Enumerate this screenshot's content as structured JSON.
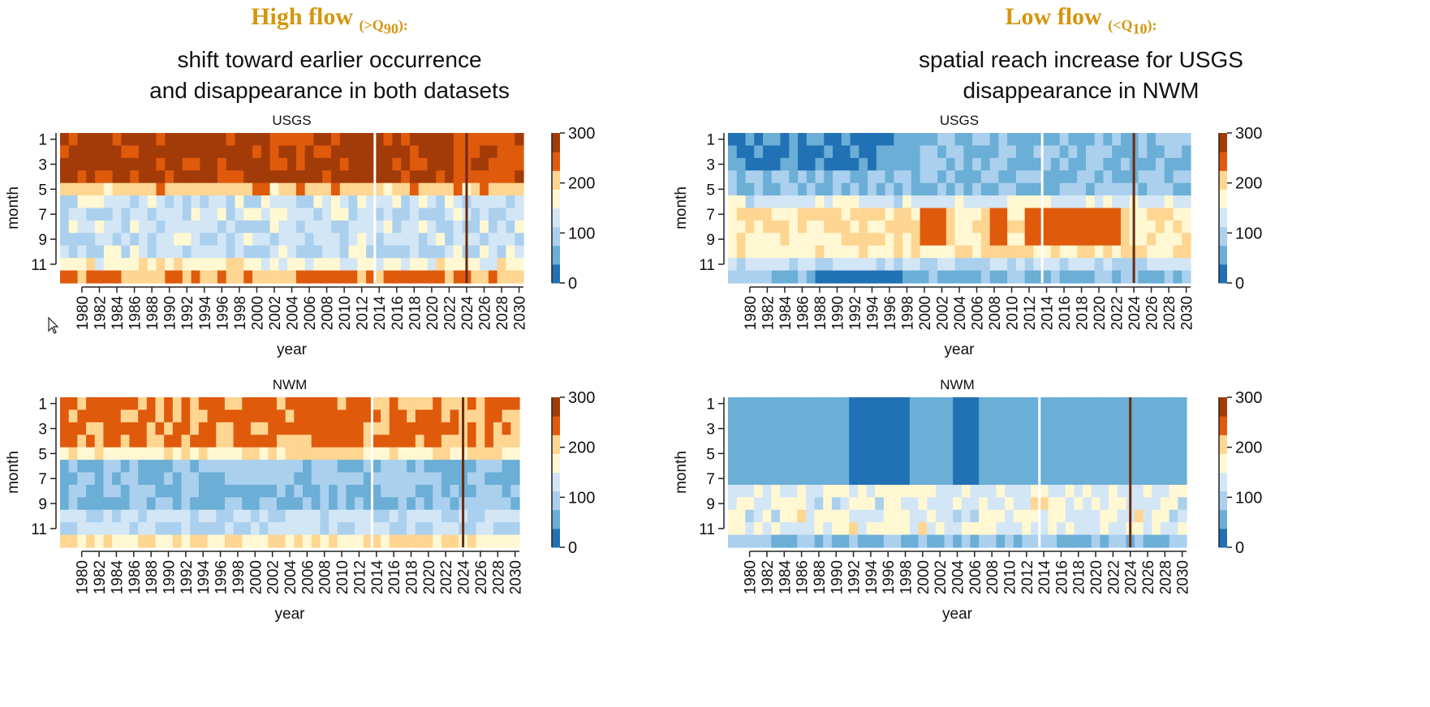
{
  "headers": [
    {
      "prefix": "High flow ",
      "paren_open": "(>Q",
      "subscript": "90",
      "paren_close": "):",
      "line1": "shift toward earlier occurrence",
      "line2": "and disappearance in both datasets",
      "color": "#d4960e"
    },
    {
      "prefix": "Low flow ",
      "paren_open": "(<Q",
      "subscript": "10",
      "paren_close": "):",
      "line1": "spatial reach increase for USGS",
      "line2": "disappearance in NWM",
      "color": "#d4960e"
    }
  ],
  "colorbar": {
    "ticks": [
      0,
      100,
      200,
      300
    ],
    "bins": [
      {
        "from": 0,
        "to": 37.5,
        "color": "#2171b5"
      },
      {
        "from": 37.5,
        "to": 75,
        "color": "#6baed6"
      },
      {
        "from": 75,
        "to": 112.5,
        "color": "#aad0ee"
      },
      {
        "from": 112.5,
        "to": 150,
        "color": "#d3e6f5"
      },
      {
        "from": 150,
        "to": 187.5,
        "color": "#fff8d2"
      },
      {
        "from": 187.5,
        "to": 225,
        "color": "#fed591"
      },
      {
        "from": 225,
        "to": 262.5,
        "color": "#e05a0c"
      },
      {
        "from": 262.5,
        "to": 300,
        "color": "#a33b08"
      }
    ]
  },
  "chart_data": [
    {
      "type": "heatmap",
      "title": "USGS",
      "xlabel": "year",
      "ylabel": "month",
      "flow": "high",
      "xticks": [
        "1980",
        "1982",
        "1984",
        "1986",
        "1988",
        "1990",
        "1992",
        "1994",
        "1996",
        "1998",
        "2000",
        "2002",
        "2004",
        "2006",
        "2008",
        "2010",
        "2012",
        "2014",
        "2016",
        "2018",
        "2020",
        "2022",
        "2024",
        "2026",
        "2028",
        "2030"
      ],
      "yticks": [
        "1",
        "3",
        "5",
        "7",
        "9",
        "11"
      ],
      "white_line_after_year": 2013,
      "brown_line_year": 2024,
      "ylim": [
        1,
        12
      ],
      "vlim": [
        0,
        300
      ]
    },
    {
      "type": "heatmap",
      "title": "USGS",
      "xlabel": "year",
      "ylabel": "month",
      "flow": "low",
      "xticks": [
        "1980",
        "1982",
        "1984",
        "1986",
        "1988",
        "1990",
        "1992",
        "1994",
        "1996",
        "1998",
        "2000",
        "2002",
        "2004",
        "2006",
        "2008",
        "2010",
        "2012",
        "2014",
        "2016",
        "2018",
        "2020",
        "2022",
        "2024",
        "2026",
        "2028",
        "2030"
      ],
      "yticks": [
        "1",
        "3",
        "5",
        "7",
        "9",
        "11"
      ],
      "white_line_after_year": 2013,
      "brown_line_year": 2024,
      "ylim": [
        1,
        12
      ],
      "vlim": [
        0,
        300
      ]
    },
    {
      "type": "heatmap",
      "title": "NWM",
      "xlabel": "year",
      "ylabel": "month",
      "flow": "high",
      "xticks": [
        "1980",
        "1982",
        "1984",
        "1986",
        "1988",
        "1990",
        "1992",
        "1994",
        "1996",
        "1998",
        "2000",
        "2002",
        "2004",
        "2006",
        "2008",
        "2010",
        "2012",
        "2014",
        "2016",
        "2018",
        "2020",
        "2022",
        "2024",
        "2026",
        "2028",
        "2030"
      ],
      "yticks": [
        "1",
        "3",
        "5",
        "7",
        "9",
        "11"
      ],
      "white_line_after_year": 2013,
      "brown_line_year": 2024,
      "ylim": [
        1,
        12
      ],
      "vlim": [
        0,
        300
      ]
    },
    {
      "type": "heatmap",
      "title": "NWM",
      "xlabel": "year",
      "ylabel": "month",
      "flow": "low",
      "xticks": [
        "1980",
        "1982",
        "1984",
        "1986",
        "1988",
        "1990",
        "1992",
        "1994",
        "1996",
        "1998",
        "2000",
        "2002",
        "2004",
        "2006",
        "2008",
        "2010",
        "2012",
        "2014",
        "2016",
        "2018",
        "2020",
        "2022",
        "2024",
        "2026",
        "2028",
        "2030"
      ],
      "yticks": [
        "1",
        "3",
        "5",
        "7",
        "9",
        "11"
      ],
      "white_line_after_year": 2013,
      "brown_line_year": 2024,
      "ylim": [
        1,
        12
      ],
      "vlim": [
        0,
        300
      ]
    }
  ]
}
